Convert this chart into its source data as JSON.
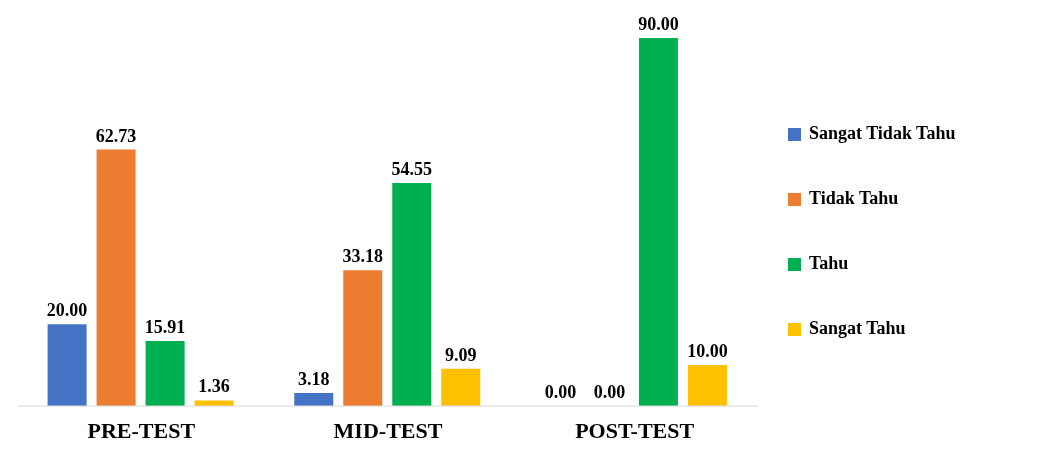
{
  "chart_data": {
    "type": "bar",
    "categories": [
      "PRE-TEST",
      "MID-TEST",
      "POST-TEST"
    ],
    "series": [
      {
        "name": "Sangat Tidak Tahu",
        "color": "#4472c4",
        "values": [
          20,
          3.18,
          0
        ],
        "value_labels": [
          "20.00",
          "3.18",
          "0.00"
        ]
      },
      {
        "name": "Tidak Tahu",
        "color": "#ed7d31",
        "values": [
          62.73,
          33.18,
          0
        ],
        "value_labels": [
          "62.73",
          "33.18",
          "0.00"
        ]
      },
      {
        "name": "Tahu",
        "color": "#00b050",
        "values": [
          15.91,
          54.55,
          90
        ],
        "value_labels": [
          "15.91",
          "54.55",
          "90.00"
        ]
      },
      {
        "name": "Sangat Tahu",
        "color": "#ffc000",
        "values": [
          1.36,
          9.09,
          10
        ],
        "value_labels": [
          "1.36",
          "9.09",
          "10.00"
        ]
      }
    ],
    "legend": "right",
    "grid": false
  }
}
